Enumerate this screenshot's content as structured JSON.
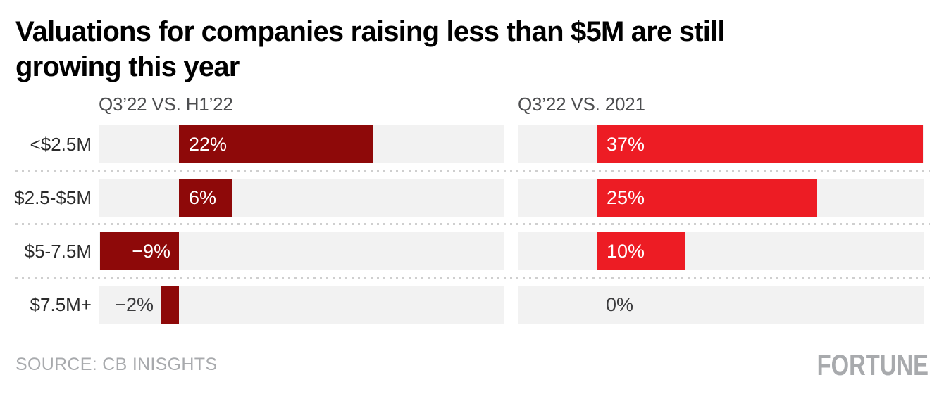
{
  "title": {
    "text": "Valuations for companies raising less than $5M are still growing this year",
    "lines": [
      "Valuations for companies raising less than $5M are still",
      "growing this year"
    ]
  },
  "source": "SOURCE: CB INISGHTS",
  "brand": "FORTUNE",
  "colors": {
    "dark_red": "#8e0909",
    "bright_red": "#ed1c24",
    "track_gray": "#f2f2f2",
    "header_gray": "#4d4e50",
    "muted_gray": "#a8aaad",
    "dark_label": "#3c3c3e"
  },
  "chart_data": {
    "type": "bar",
    "orientation": "horizontal",
    "title": "Valuations for companies raising less than $5M are still growing this year",
    "categories": [
      "<$2.5M",
      "$2.5-$5M",
      "$5-7.5M",
      "$7.5M+"
    ],
    "series": [
      {
        "name": "Q3’22 VS. H1’22",
        "values": [
          22,
          6,
          -9,
          -2
        ],
        "labels": [
          "22%",
          "6%",
          "−9%",
          "−2%"
        ],
        "color": "#8e0909"
      },
      {
        "name": "Q3’22 VS. 2021",
        "values": [
          37,
          25,
          10,
          0
        ],
        "labels": [
          "37%",
          "25%",
          "10%",
          "0%"
        ],
        "color": "#ed1c24"
      }
    ],
    "xlim": [
      -9.1,
      37
    ],
    "grid": false,
    "legend": "none",
    "value_labels_shown": true
  }
}
